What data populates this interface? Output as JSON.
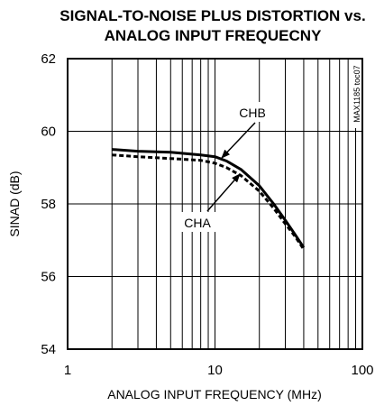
{
  "chart_data": {
    "type": "line",
    "title_lines": [
      "SIGNAL-TO-NOISE PLUS DISTORTION vs.",
      "ANALOG INPUT FREQUECNY"
    ],
    "xlabel": "ANALOG INPUT FREQUENCY (MHz)",
    "ylabel": "SINAD (dB)",
    "x_scale": "log",
    "xlim": [
      1,
      100
    ],
    "ylim": [
      54,
      62
    ],
    "grid": true,
    "x_ticks": [
      {
        "value": 1,
        "label": "1"
      },
      {
        "value": 10,
        "label": "10"
      },
      {
        "value": 100,
        "label": "100"
      }
    ],
    "y_ticks": [
      {
        "value": 54,
        "label": "54"
      },
      {
        "value": 56,
        "label": "56"
      },
      {
        "value": 58,
        "label": "58"
      },
      {
        "value": 60,
        "label": "60"
      },
      {
        "value": 62,
        "label": "62"
      }
    ],
    "series": [
      {
        "name": "CHB",
        "style": "solid",
        "x": [
          2,
          3,
          5,
          8,
          10,
          12,
          15,
          20,
          25,
          30,
          35,
          40
        ],
        "y": [
          59.5,
          59.45,
          59.42,
          59.35,
          59.3,
          59.18,
          58.95,
          58.5,
          58.0,
          57.55,
          57.15,
          56.8
        ]
      },
      {
        "name": "CHA",
        "style": "dashed",
        "x": [
          2,
          3,
          5,
          8,
          10,
          12,
          15,
          20,
          25,
          30,
          35,
          40
        ],
        "y": [
          59.35,
          59.3,
          59.25,
          59.2,
          59.12,
          59.0,
          58.78,
          58.35,
          57.88,
          57.45,
          57.1,
          56.75
        ]
      }
    ],
    "annotations": [
      {
        "text": "CHB",
        "series": "CHB",
        "arrow_to": {
          "x": 10.5,
          "y": 59.3
        }
      },
      {
        "text": "CHA",
        "series": "CHA",
        "arrow_to": {
          "x": 14.5,
          "y": 58.85
        }
      }
    ],
    "figure_code": "MAX1185 toc07"
  }
}
